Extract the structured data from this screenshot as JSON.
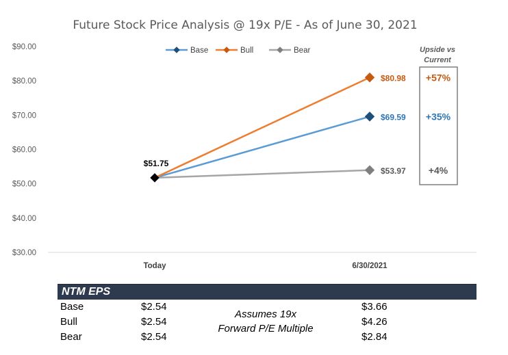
{
  "chart_data": {
    "type": "line",
    "title": "Future Stock Price Analysis @ 19x P/E - As of June 30, 2021",
    "categories": [
      "Today",
      "6/30/2021"
    ],
    "ylim": [
      30,
      90
    ],
    "yticks": [
      "$30.00",
      "$40.00",
      "$50.00",
      "$60.00",
      "$70.00",
      "$80.00",
      "$90.00"
    ],
    "ytick_values": [
      30,
      40,
      50,
      60,
      70,
      80,
      90
    ],
    "grid": false,
    "legend_position": "top-center",
    "start_label": "$51.75",
    "series": [
      {
        "name": "Base",
        "values": [
          51.75,
          69.59
        ],
        "color": "#5b9bd5",
        "marker_color": "#1f4e79",
        "end_label": "$69.59",
        "label_color": "#2e75b6",
        "upside": "+35%"
      },
      {
        "name": "Bull",
        "values": [
          51.75,
          80.98
        ],
        "color": "#ed7d31",
        "marker_color": "#c55a11",
        "end_label": "$80.98",
        "label_color": "#c55a11",
        "upside": "+57%"
      },
      {
        "name": "Bear",
        "values": [
          51.75,
          53.97
        ],
        "color": "#a5a5a5",
        "marker_color": "#7f7f7f",
        "end_label": "$53.97",
        "label_color": "#595959",
        "upside": "+4%"
      }
    ],
    "upside_header": [
      "Upside vs",
      "Current"
    ]
  },
  "eps_table": {
    "header": "NTM EPS",
    "rows": [
      {
        "name": "Base",
        "today": "$2.54",
        "future": "$3.66"
      },
      {
        "name": "Bull",
        "today": "$2.54",
        "future": "$4.26"
      },
      {
        "name": "Bear",
        "today": "$2.54",
        "future": "$2.84"
      }
    ],
    "note_line1": "Assumes 19x",
    "note_line2": "Forward P/E Multiple"
  }
}
